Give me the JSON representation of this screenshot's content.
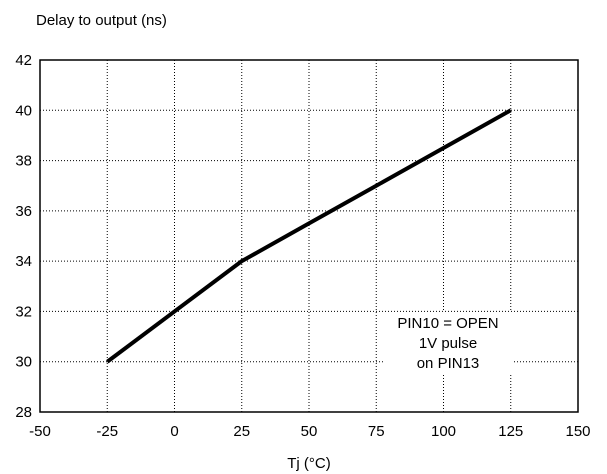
{
  "chart_data": {
    "type": "line",
    "ylabel": "Delay to output (ns)",
    "xlabel": "Tj (°C)",
    "xlim": [
      -50,
      150
    ],
    "ylim": [
      28,
      42
    ],
    "xticks": [
      -50,
      -25,
      0,
      25,
      50,
      75,
      100,
      125,
      150
    ],
    "yticks": [
      28,
      30,
      32,
      34,
      36,
      38,
      40,
      42
    ],
    "grid": true,
    "grid_style": "dotted",
    "series": [
      {
        "x": [
          -25,
          0,
          25,
          50,
          75,
          100,
          125
        ],
        "y": [
          30,
          32,
          34,
          35.5,
          37,
          38.5,
          40
        ],
        "color": "#000000"
      }
    ],
    "annotation": {
      "lines": [
        "PIN10 = OPEN",
        "1V pulse",
        "on PIN13"
      ]
    }
  }
}
